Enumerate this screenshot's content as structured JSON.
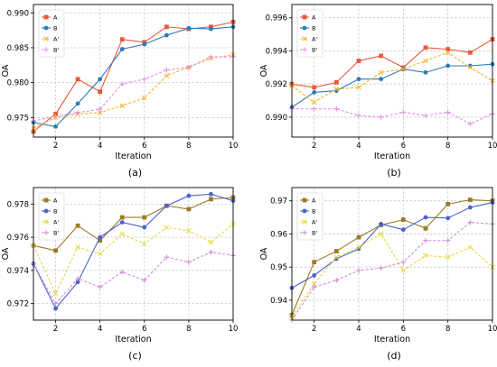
{
  "chart_data": [
    {
      "type": "line",
      "panel_label": "(a)",
      "xlabel": "Iteration",
      "ylabel": "OA",
      "xlim": [
        1,
        10
      ],
      "ylim": [
        0.9722,
        0.9912
      ],
      "xticks": [
        "2",
        "4",
        "6",
        "8",
        "10"
      ],
      "yticks": [
        "0.975",
        "0.980",
        "0.985",
        "0.990"
      ],
      "grid": true,
      "legend_position": "top-left",
      "x": [
        1,
        2,
        3,
        4,
        5,
        6,
        7,
        8,
        9,
        10
      ],
      "series": [
        {
          "name": "A",
          "values": [
            0.973,
            0.9755,
            0.9805,
            0.9787,
            0.9862,
            0.9858,
            0.988,
            0.9877,
            0.988,
            0.9887
          ]
        },
        {
          "name": "B",
          "values": [
            0.9743,
            0.9737,
            0.977,
            0.9805,
            0.9848,
            0.9855,
            0.9868,
            0.9878,
            0.9877,
            0.988
          ]
        },
        {
          "name": "A'",
          "values": [
            0.9735,
            0.975,
            0.9755,
            0.9757,
            0.9767,
            0.9778,
            0.981,
            0.9822,
            0.9835,
            0.984
          ]
        },
        {
          "name": "B'",
          "values": [
            0.9745,
            0.9752,
            0.9757,
            0.9762,
            0.9798,
            0.9805,
            0.9818,
            0.9822,
            0.9837,
            0.9837
          ]
        }
      ]
    },
    {
      "type": "line",
      "panel_label": "(b)",
      "xlabel": "Iteration",
      "ylabel": "OA",
      "xlim": [
        1,
        10
      ],
      "ylim": [
        0.9888,
        0.9968
      ],
      "xticks": [
        "2",
        "4",
        "6",
        "8",
        "10"
      ],
      "yticks": [
        "0.990",
        "0.992",
        "0.994",
        "0.996"
      ],
      "grid": true,
      "legend_position": "top-left",
      "x": [
        1,
        2,
        3,
        4,
        5,
        6,
        7,
        8,
        9,
        10
      ],
      "series": [
        {
          "name": "A",
          "values": [
            0.992,
            0.9918,
            0.9921,
            0.9934,
            0.9937,
            0.993,
            0.9942,
            0.9941,
            0.9939,
            0.9947
          ]
        },
        {
          "name": "B",
          "values": [
            0.9906,
            0.9915,
            0.9916,
            0.9923,
            0.9923,
            0.9929,
            0.9927,
            0.9931,
            0.9931,
            0.9932
          ]
        },
        {
          "name": "A'",
          "values": [
            0.9919,
            0.9909,
            0.9917,
            0.9918,
            0.9927,
            0.9929,
            0.9934,
            0.9939,
            0.993,
            0.9922
          ]
        },
        {
          "name": "B'",
          "values": [
            0.9905,
            0.9905,
            0.9905,
            0.9901,
            0.99,
            0.9903,
            0.9901,
            0.9903,
            0.9896,
            0.9902
          ]
        }
      ]
    },
    {
      "type": "line",
      "panel_label": "(c)",
      "xlabel": "Iteration",
      "ylabel": "OA",
      "xlim": [
        1,
        10
      ],
      "ylim": [
        0.971,
        0.979
      ],
      "xticks": [
        "2",
        "4",
        "6",
        "8",
        "10"
      ],
      "yticks": [
        "0.972",
        "0.974",
        "0.976",
        "0.978"
      ],
      "grid": true,
      "legend_position": "top-left",
      "x": [
        1,
        2,
        3,
        4,
        5,
        6,
        7,
        8,
        9,
        10
      ],
      "series": [
        {
          "name": "A",
          "values": [
            0.9755,
            0.9752,
            0.9767,
            0.9758,
            0.9772,
            0.9772,
            0.9779,
            0.9777,
            0.9783,
            0.9784
          ]
        },
        {
          "name": "B",
          "values": [
            0.9744,
            0.9717,
            0.9733,
            0.976,
            0.9769,
            0.9766,
            0.9779,
            0.9785,
            0.9786,
            0.9782
          ]
        },
        {
          "name": "A'",
          "values": [
            0.9755,
            0.9726,
            0.9754,
            0.975,
            0.9762,
            0.9756,
            0.9766,
            0.9764,
            0.9757,
            0.9768
          ]
        },
        {
          "name": "B'",
          "values": [
            0.9744,
            0.972,
            0.9735,
            0.973,
            0.9739,
            0.9734,
            0.9748,
            0.9745,
            0.9751,
            0.9749
          ]
        }
      ]
    },
    {
      "type": "line",
      "panel_label": "(d)",
      "xlabel": "Iteration",
      "ylabel": "OA",
      "xlim": [
        1,
        10
      ],
      "ylim": [
        0.934,
        0.974
      ],
      "xticks": [
        "2",
        "4",
        "6",
        "8",
        "10"
      ],
      "yticks": [
        "0.94",
        "0.95",
        "0.96",
        "0.97"
      ],
      "grid": true,
      "legend_position": "top-left",
      "x": [
        1,
        2,
        3,
        4,
        5,
        6,
        7,
        8,
        9,
        10
      ],
      "series": [
        {
          "name": "A",
          "values": [
            0.9355,
            0.9515,
            0.9548,
            0.959,
            0.9627,
            0.9643,
            0.9617,
            0.969,
            0.9703,
            0.97
          ]
        },
        {
          "name": "B",
          "values": [
            0.9437,
            0.9475,
            0.9525,
            0.9555,
            0.963,
            0.9613,
            0.965,
            0.9648,
            0.968,
            0.9695
          ]
        },
        {
          "name": "A'",
          "values": [
            0.935,
            0.945,
            0.953,
            0.956,
            0.96,
            0.949,
            0.9535,
            0.953,
            0.956,
            0.95
          ]
        },
        {
          "name": "B'",
          "values": [
            0.934,
            0.944,
            0.946,
            0.949,
            0.9497,
            0.9515,
            0.958,
            0.958,
            0.9635,
            0.963
          ]
        }
      ]
    }
  ],
  "styles": {
    "colors_ab": [
      "#e8593a",
      "#2e7bb6",
      "#f5b324",
      "#e58be8"
    ],
    "colors_cd": [
      "#9b7b28",
      "#4b63c8",
      "#e5d93c",
      "#d389d6"
    ],
    "markers": [
      "square",
      "circle",
      "x",
      "plus"
    ]
  }
}
